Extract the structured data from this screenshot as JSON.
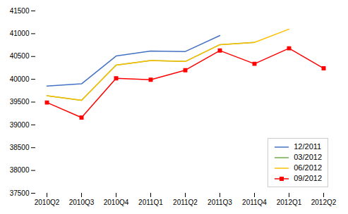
{
  "chart_data": {
    "type": "line",
    "categories": [
      "2010Q2",
      "2010Q3",
      "2010Q4",
      "2011Q1",
      "2011Q2",
      "2011Q3",
      "2011Q4",
      "2012Q1",
      "2012Q2"
    ],
    "series": [
      {
        "name": "12/2011",
        "color": "#4472C4",
        "values": [
          39850,
          39900,
          40510,
          40620,
          40610,
          40960,
          null,
          null,
          null
        ]
      },
      {
        "name": "03/2012",
        "color": "#70AD47",
        "values": [
          39640,
          39540,
          40310,
          40410,
          40390,
          40760,
          40810,
          null,
          null
        ]
      },
      {
        "name": "06/2012",
        "color": "#FFC000",
        "values": [
          39640,
          39540,
          40310,
          40410,
          40390,
          40760,
          40810,
          41100,
          null
        ]
      },
      {
        "name": "09/2012",
        "color": "#FF0000",
        "marker": "square",
        "values": [
          39490,
          39160,
          40020,
          39990,
          40200,
          40630,
          40340,
          40680,
          40240
        ]
      }
    ],
    "ylim": [
      37500,
      41500
    ],
    "yticks": [
      37500,
      38000,
      38500,
      39000,
      39500,
      40000,
      40500,
      41000,
      41500
    ],
    "grid": false,
    "legend": "lower right"
  }
}
